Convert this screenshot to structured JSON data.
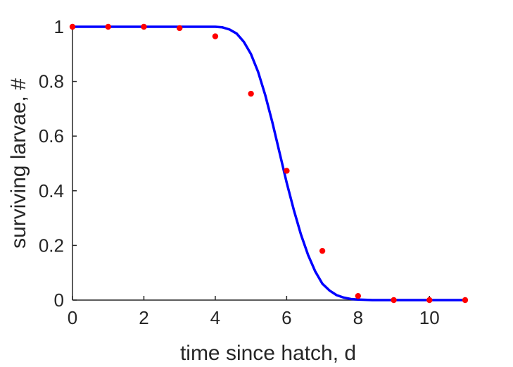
{
  "chart_data": {
    "type": "scatter",
    "title": "",
    "xlabel": "time since hatch, d",
    "ylabel": "surviving larvae, #",
    "xlim": [
      0,
      11
    ],
    "ylim": [
      0,
      1
    ],
    "grid": false,
    "legend": "none",
    "x_ticks": [
      0,
      2,
      4,
      6,
      8,
      10
    ],
    "x_tick_labels": [
      "0",
      "2",
      "4",
      "6",
      "8",
      "10"
    ],
    "y_ticks": [
      0,
      0.2,
      0.4,
      0.6,
      0.8,
      1
    ],
    "y_tick_labels": [
      "0",
      "0.2",
      "0.4",
      "0.6",
      "0.8",
      "1"
    ],
    "series": [
      {
        "type": "scatter",
        "color": "#ff0000",
        "x": [
          0,
          1,
          2,
          3,
          4,
          5,
          6,
          7,
          8,
          9,
          10,
          11
        ],
        "y": [
          1.0,
          1.0,
          1.0,
          0.995,
          0.965,
          0.755,
          0.473,
          0.18,
          0.015,
          0.0,
          0.0,
          0.0
        ]
      },
      {
        "type": "line",
        "color": "#0000ff",
        "x": [
          0,
          4,
          4.2,
          4.4,
          4.6,
          4.8,
          5.0,
          5.2,
          5.4,
          5.6,
          5.8,
          6.0,
          6.2,
          6.4,
          6.6,
          6.8,
          7.0,
          7.2,
          7.4,
          7.6,
          7.8,
          8.0,
          8.2,
          8.4,
          8.6,
          8.8,
          9.0,
          11
        ],
        "y": [
          1.0,
          1.0,
          0.998,
          0.99,
          0.975,
          0.945,
          0.9,
          0.835,
          0.75,
          0.65,
          0.54,
          0.43,
          0.33,
          0.24,
          0.165,
          0.105,
          0.06,
          0.035,
          0.018,
          0.009,
          0.004,
          0.002,
          0.001,
          0.0,
          0.0,
          0.0,
          0.0,
          0.0
        ]
      }
    ]
  }
}
